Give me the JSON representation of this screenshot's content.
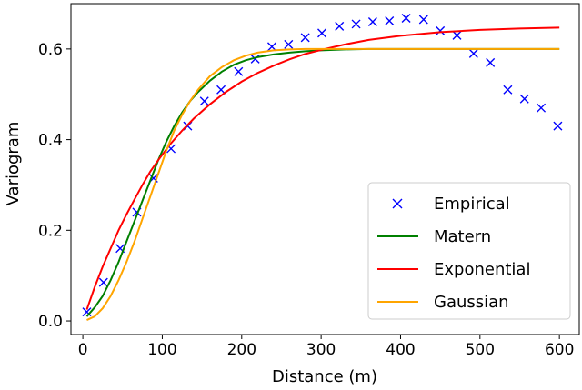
{
  "chart_data": {
    "type": "line",
    "xlabel": "Distance (m)",
    "ylabel": "Variogram",
    "xlim": [
      -15,
      625
    ],
    "ylim": [
      -0.03,
      0.7
    ],
    "xticks": [
      0,
      100,
      200,
      300,
      400,
      500,
      600
    ],
    "yticks": [
      0.0,
      0.2,
      0.4,
      0.6
    ],
    "ytick_labels": [
      "0.0",
      "0.2",
      "0.4",
      "0.6"
    ],
    "grid": false,
    "legend_position": "lower right",
    "series": [
      {
        "name": "Empirical",
        "kind": "scatter",
        "marker": "x",
        "color": "#0000ff",
        "x": [
          5,
          26,
          47,
          68,
          89,
          111,
          132,
          153,
          174,
          196,
          217,
          238,
          259,
          280,
          301,
          323,
          344,
          365,
          386,
          407,
          429,
          450,
          471,
          492,
          513,
          535,
          556,
          577,
          598
        ],
        "y": [
          0.02,
          0.085,
          0.16,
          0.24,
          0.315,
          0.38,
          0.43,
          0.485,
          0.51,
          0.55,
          0.578,
          0.605,
          0.61,
          0.625,
          0.635,
          0.65,
          0.655,
          0.66,
          0.662,
          0.668,
          0.665,
          0.64,
          0.63,
          0.59,
          0.57,
          0.51,
          0.49,
          0.47,
          0.43
        ]
      },
      {
        "name": "Matern",
        "kind": "line",
        "color": "#008000",
        "x": [
          5,
          15,
          25,
          35,
          45,
          55,
          65,
          75,
          85,
          95,
          105,
          115,
          125,
          135,
          145,
          160,
          175,
          190,
          205,
          220,
          240,
          260,
          280,
          300,
          330,
          360,
          400,
          450,
          500,
          550,
          600
        ],
        "y": [
          0.01,
          0.03,
          0.055,
          0.09,
          0.13,
          0.175,
          0.22,
          0.265,
          0.31,
          0.355,
          0.395,
          0.43,
          0.46,
          0.485,
          0.505,
          0.53,
          0.55,
          0.565,
          0.575,
          0.582,
          0.588,
          0.592,
          0.595,
          0.597,
          0.599,
          0.6,
          0.6,
          0.6,
          0.6,
          0.6,
          0.6
        ]
      },
      {
        "name": "Exponential",
        "kind": "line",
        "color": "#ff0000",
        "x": [
          5,
          15,
          25,
          35,
          45,
          55,
          65,
          75,
          85,
          95,
          110,
          125,
          140,
          160,
          180,
          200,
          220,
          240,
          260,
          280,
          300,
          330,
          360,
          400,
          450,
          500,
          550,
          600
        ],
        "y": [
          0.025,
          0.075,
          0.12,
          0.16,
          0.2,
          0.235,
          0.268,
          0.3,
          0.33,
          0.355,
          0.39,
          0.42,
          0.447,
          0.478,
          0.505,
          0.528,
          0.547,
          0.563,
          0.577,
          0.589,
          0.598,
          0.61,
          0.62,
          0.629,
          0.637,
          0.642,
          0.645,
          0.647
        ]
      },
      {
        "name": "Gaussian",
        "kind": "line",
        "color": "#ffa500",
        "x": [
          5,
          15,
          25,
          35,
          45,
          55,
          65,
          75,
          85,
          95,
          105,
          115,
          125,
          135,
          145,
          160,
          175,
          190,
          205,
          220,
          240,
          260,
          280,
          300,
          350,
          400,
          450,
          500,
          550,
          600
        ],
        "y": [
          0.002,
          0.01,
          0.028,
          0.055,
          0.09,
          0.13,
          0.175,
          0.225,
          0.275,
          0.325,
          0.375,
          0.42,
          0.455,
          0.485,
          0.51,
          0.54,
          0.56,
          0.575,
          0.585,
          0.592,
          0.597,
          0.599,
          0.6,
          0.6,
          0.6,
          0.6,
          0.6,
          0.6,
          0.6,
          0.6
        ]
      }
    ]
  }
}
